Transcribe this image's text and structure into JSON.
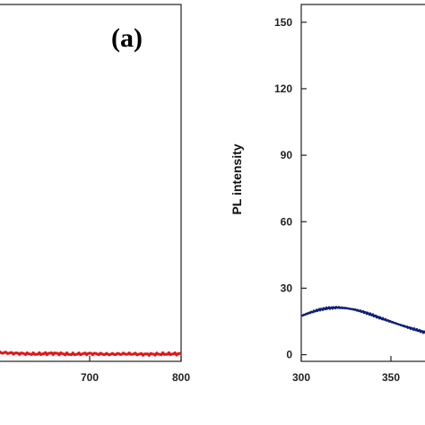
{
  "chart_data": [
    {
      "type": "line",
      "panel_label": "(a)",
      "xlim": [
        600,
        800
      ],
      "x_ticks": [
        700,
        800
      ],
      "x_tick_labels": [
        "700",
        "800"
      ],
      "series": [
        {
          "color": "#e0161a",
          "x": [
            600,
            620,
            640,
            660,
            680,
            700,
            720,
            740,
            760,
            780,
            800
          ],
          "y": [
            1.0,
            0.6,
            0.3,
            0.6,
            0.2,
            0.5,
            0.2,
            0.4,
            0.2,
            0.3,
            0.4
          ]
        }
      ]
    },
    {
      "type": "line",
      "ylabel": "PL intensity",
      "xlim": [
        300,
        400
      ],
      "ylim": [
        -3,
        158
      ],
      "x_ticks": [
        300,
        350
      ],
      "x_tick_labels": [
        "300",
        "350"
      ],
      "y_ticks": [
        0,
        30,
        60,
        90,
        120,
        150
      ],
      "y_tick_labels": [
        "0",
        "30",
        "60",
        "90",
        "120",
        "150"
      ],
      "series": [
        {
          "color": "#10207a",
          "x": [
            300,
            305,
            310,
            315,
            320,
            325,
            330,
            335,
            340,
            345,
            350,
            355,
            360,
            365,
            370
          ],
          "y": [
            17.5,
            19.0,
            20.3,
            21.0,
            21.3,
            21.0,
            20.3,
            19.2,
            17.8,
            16.3,
            14.9,
            13.5,
            12.2,
            11.0,
            9.8
          ]
        }
      ]
    }
  ]
}
